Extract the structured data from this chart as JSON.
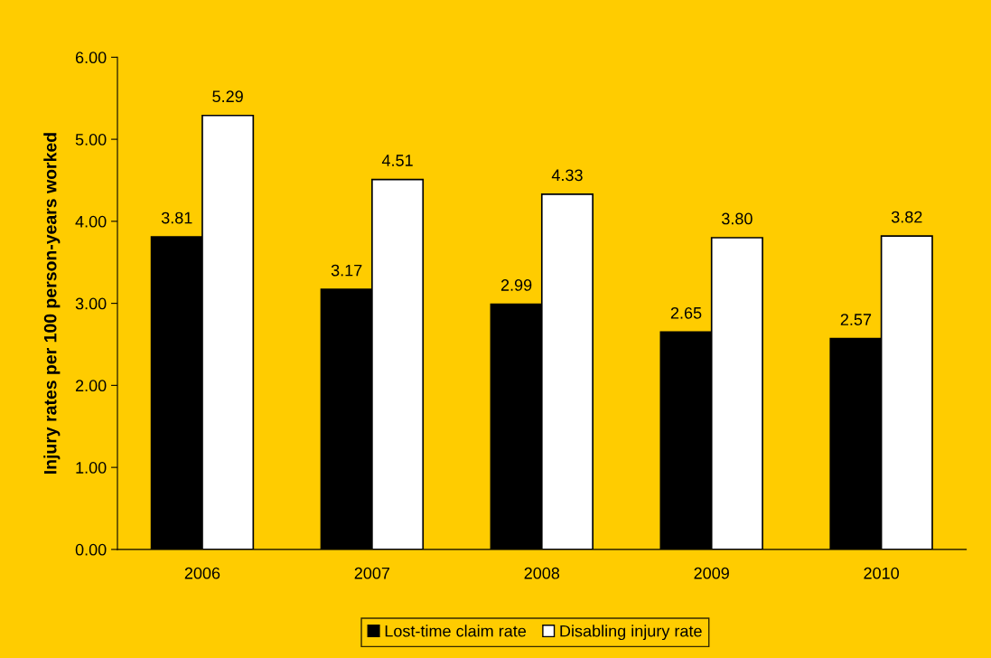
{
  "chart_data": {
    "type": "bar",
    "ylabel": "Injury rates per 100 person-years worked",
    "categories": [
      "2006",
      "2007",
      "2008",
      "2009",
      "2010"
    ],
    "series": [
      {
        "name": "Lost-time claim rate",
        "color": "#000000",
        "values": [
          3.81,
          3.17,
          2.99,
          2.65,
          2.57
        ],
        "value_labels": [
          "3.81",
          "3.17",
          "2.99",
          "2.65",
          "2.57"
        ]
      },
      {
        "name": "Disabling injury rate",
        "color": "#ffffff",
        "values": [
          5.29,
          4.51,
          4.33,
          3.8,
          3.82
        ],
        "value_labels": [
          "5.29",
          "4.51",
          "4.33",
          "3.80",
          "3.82"
        ]
      }
    ],
    "ylim": [
      0,
      6
    ],
    "yticks": [
      {
        "value": 0,
        "label": "0.00"
      },
      {
        "value": 1,
        "label": "1.00"
      },
      {
        "value": 2,
        "label": "2.00"
      },
      {
        "value": 3,
        "label": "3.00"
      },
      {
        "value": 4,
        "label": "4.00"
      },
      {
        "value": 5,
        "label": "5.00"
      },
      {
        "value": 6,
        "label": "6.00"
      }
    ],
    "grid": false,
    "legend": "bottom"
  }
}
